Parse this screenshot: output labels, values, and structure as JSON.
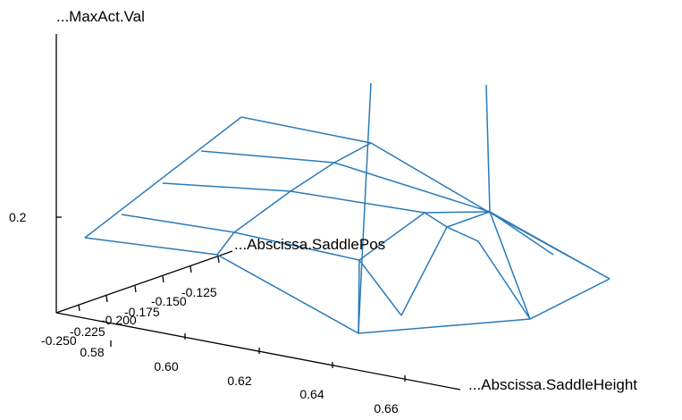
{
  "chart_data": {
    "type": "surface-wireframe",
    "title": "",
    "axes": {
      "x": {
        "label": "...Abscissa.SaddleHeight",
        "ticks": [
          "0.58",
          "0.60",
          "0.62",
          "0.64",
          "0.66"
        ]
      },
      "y": {
        "label": "...Abscissa.SaddlePos",
        "ticks": [
          "-0.250",
          "-0.225",
          "-0.200",
          "-0.175",
          "-0.150",
          "-0.125"
        ]
      },
      "z": {
        "label": "...MaxAct.Val",
        "ticks": [
          "0.2"
        ]
      }
    },
    "grid": false,
    "colors": {
      "surface": "#2b7bba",
      "axis": "#000000"
    }
  }
}
